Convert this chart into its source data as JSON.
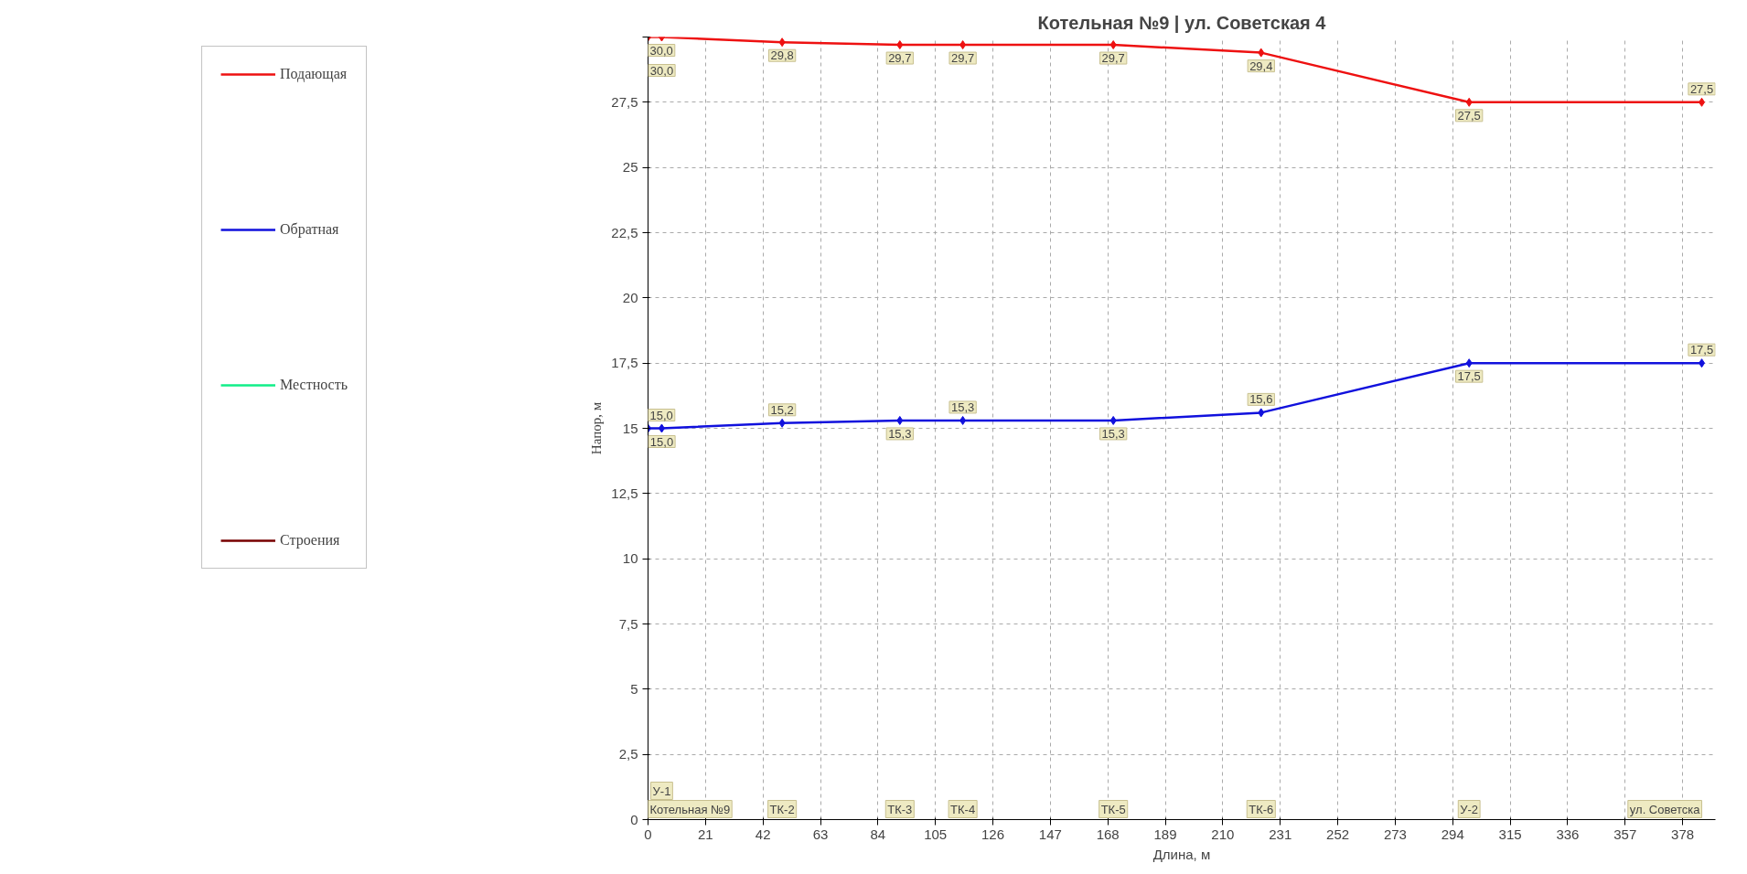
{
  "chart_data": {
    "type": "line",
    "title": "Котельная №9 | ул. Советская 4",
    "xlabel": "Длина, м",
    "ylabel": "Напор, м",
    "x": [
      0,
      5,
      49,
      92,
      115,
      170,
      224,
      300,
      385
    ],
    "series": [
      {
        "name": "Подающая",
        "color": "#ee1111",
        "values": [
          30.0,
          30.0,
          29.8,
          29.7,
          29.7,
          29.7,
          29.4,
          27.5,
          27.5
        ],
        "value_labels": [
          "30,0",
          "30,0",
          "29,8",
          "29,7",
          "29,7",
          "29,7",
          "29,4",
          "27,5",
          "27,5"
        ]
      },
      {
        "name": "Обратная",
        "color": "#1111dd",
        "values": [
          15.0,
          15.0,
          15.2,
          15.3,
          15.3,
          15.3,
          15.6,
          17.5,
          17.5
        ],
        "value_labels": [
          "15,0",
          "15,0",
          "15,2",
          "15,3",
          "15,3",
          "15,3",
          "15,6",
          "17,5",
          "17,5"
        ]
      },
      {
        "name": "Местность",
        "color": "#11ee88",
        "values": [
          null,
          null,
          null,
          null,
          null,
          null,
          null,
          null,
          null
        ]
      },
      {
        "name": "Строения",
        "color": "#770000",
        "values": [
          null,
          null,
          null,
          null,
          null,
          null,
          null,
          null,
          null
        ]
      }
    ],
    "annotations": [
      "Котельная №9",
      "У-1",
      "ТК-2",
      "ТК-3",
      "ТК-4",
      "ТК-5",
      "ТК-6",
      "У-2",
      "ул. Советска"
    ],
    "xlim": [
      0,
      390
    ],
    "xticks": [
      0,
      21,
      42,
      63,
      84,
      105,
      126,
      147,
      168,
      189,
      210,
      231,
      252,
      273,
      294,
      315,
      336,
      357,
      378
    ],
    "ylim": [
      0,
      30
    ],
    "yticks": [
      0,
      {
        "value": 2.5,
        "label": "2,5"
      },
      5,
      {
        "value": 7.5,
        "label": "7,5"
      },
      10,
      {
        "value": 12.5,
        "label": "12,5"
      },
      15,
      {
        "value": 17.5,
        "label": "17,5"
      },
      20,
      {
        "value": 22.5,
        "label": "22,5"
      },
      25,
      {
        "value": 27.5,
        "label": "27,5"
      },
      {
        "value": 30,
        "label": null
      }
    ],
    "grid": true,
    "legend": "left",
    "marker": "diamond",
    "line_style": "solid"
  }
}
